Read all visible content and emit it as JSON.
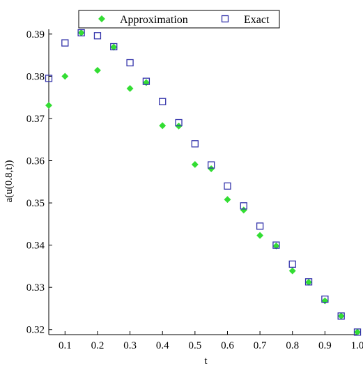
{
  "chart_data": {
    "type": "scatter",
    "title": "",
    "xlabel": "t",
    "ylabel": "a(u(0.8,t))",
    "xlim": [
      0.05,
      1.0
    ],
    "ylim": [
      0.3188,
      0.3908
    ],
    "grid": false,
    "legend_position": "top",
    "xticks": [
      0.1,
      0.2,
      0.3,
      0.4,
      0.5,
      0.6,
      0.7,
      0.8,
      0.9,
      1.0
    ],
    "xtick_labels": [
      "0.1",
      "0.2",
      "0.3",
      "0.4",
      "0.5",
      "0.6",
      "0.7",
      "0.8",
      "0.9",
      "1.0"
    ],
    "yticks": [
      0.32,
      0.33,
      0.34,
      0.35,
      0.36,
      0.37,
      0.38,
      0.39
    ],
    "ytick_labels": [
      "0.32",
      "0.33",
      "0.34",
      "0.35",
      "0.36",
      "0.37",
      "0.38",
      "0.39"
    ],
    "series": [
      {
        "name": "Approximation",
        "marker": "diamond",
        "color": "#33dd33",
        "points": [
          [
            0.05,
            0.3731
          ],
          [
            0.1,
            0.38
          ],
          [
            0.15,
            0.3903
          ],
          [
            0.2,
            0.3814
          ],
          [
            0.25,
            0.3869
          ],
          [
            0.3,
            0.3771
          ],
          [
            0.35,
            0.3785
          ],
          [
            0.4,
            0.3683
          ],
          [
            0.45,
            0.3682
          ],
          [
            0.5,
            0.3591
          ],
          [
            0.55,
            0.3581
          ],
          [
            0.6,
            0.3508
          ],
          [
            0.65,
            0.3483
          ],
          [
            0.7,
            0.3423
          ],
          [
            0.75,
            0.3398
          ],
          [
            0.8,
            0.3339
          ],
          [
            0.85,
            0.3312
          ],
          [
            0.9,
            0.3268
          ],
          [
            0.95,
            0.3232
          ],
          [
            1.0,
            0.3194
          ]
        ]
      },
      {
        "name": "Exact",
        "marker": "open-square",
        "color": "#3333aa",
        "points": [
          [
            0.05,
            0.3795
          ],
          [
            0.1,
            0.3879
          ],
          [
            0.15,
            0.3903
          ],
          [
            0.2,
            0.3896
          ],
          [
            0.25,
            0.387
          ],
          [
            0.3,
            0.3832
          ],
          [
            0.35,
            0.3788
          ],
          [
            0.4,
            0.374
          ],
          [
            0.45,
            0.369
          ],
          [
            0.5,
            0.364
          ],
          [
            0.55,
            0.359
          ],
          [
            0.6,
            0.354
          ],
          [
            0.65,
            0.3493
          ],
          [
            0.7,
            0.3445
          ],
          [
            0.75,
            0.34
          ],
          [
            0.8,
            0.3355
          ],
          [
            0.85,
            0.3313
          ],
          [
            0.9,
            0.3272
          ],
          [
            0.95,
            0.3232
          ],
          [
            1.0,
            0.3194
          ]
        ]
      }
    ]
  }
}
